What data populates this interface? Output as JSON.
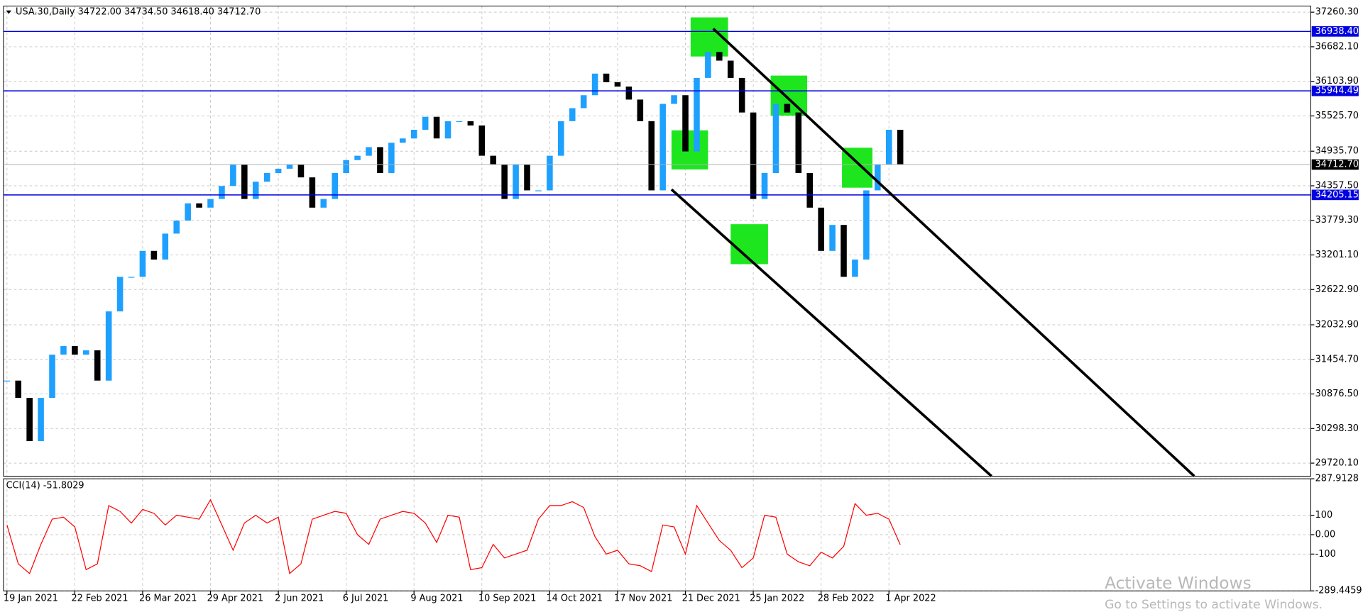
{
  "chart_data": [
    {
      "type": "candlestick",
      "title": "USA.30,Daily  34722.00 34734.50 34618.40 34712.70",
      "categories": [
        "19 Jan 2021",
        null,
        null,
        null,
        null,
        null,
        "22 Feb 2021",
        null,
        null,
        null,
        null,
        null,
        "26 Mar 2021",
        null,
        null,
        null,
        null,
        null,
        "29 Apr 2021",
        null,
        null,
        null,
        null,
        null,
        "2 Jun 2021",
        null,
        null,
        null,
        null,
        null,
        "6 Jul 2021",
        null,
        null,
        null,
        null,
        null,
        "9 Aug 2021",
        null,
        null,
        null,
        null,
        null,
        "10 Sep 2021",
        null,
        null,
        null,
        null,
        null,
        "14 Oct 2021",
        null,
        null,
        null,
        null,
        null,
        "17 Nov 2021",
        null,
        null,
        null,
        null,
        null,
        "21 Dec 2021",
        null,
        null,
        null,
        null,
        null,
        "25 Jan 2022",
        null,
        null,
        null,
        null,
        null,
        "28 Feb 2022",
        null,
        null,
        null,
        null,
        null,
        "1 Apr 2022",
        null
      ],
      "values": [
        31100,
        30811,
        30088,
        30811,
        31534,
        31678,
        31534,
        31606,
        31100,
        32257,
        32835,
        32835,
        33269,
        33124,
        33558,
        33775,
        34064,
        33992,
        34137,
        34354,
        34715,
        34137,
        34426,
        34571,
        34643,
        34715,
        34498,
        33992,
        34137,
        34571,
        34787,
        34860,
        35004,
        34571,
        35077,
        35149,
        35294,
        35511,
        35149,
        35438,
        35438,
        35366,
        34860,
        34715,
        34137,
        34715,
        34281,
        34281,
        34860,
        35438,
        35655,
        35872,
        36233,
        36089,
        36016,
        35799,
        35438,
        34281,
        35727,
        35872,
        34932,
        36161,
        36595,
        36450,
        36161,
        35583,
        34137,
        34571,
        35727,
        35583,
        34571,
        33992,
        33269,
        33703,
        32835,
        33124,
        34281,
        34715,
        35294,
        34712.7
      ],
      "up_color": "#1ea0ff",
      "down_color": "#000000",
      "ylim": [
        29502,
        37362
      ],
      "yticks": [
        {
          "value": 37260.3,
          "label": "37260.30"
        },
        {
          "value": 36682.1,
          "label": "36682.10"
        },
        {
          "value": 36103.9,
          "label": "36103.90"
        },
        {
          "value": 35525.7,
          "label": "35525.70"
        },
        {
          "value": 34935.7,
          "label": "34935.70"
        },
        {
          "value": 34357.5,
          "label": "34357.50"
        },
        {
          "value": 33779.3,
          "label": "33779.30"
        },
        {
          "value": 33201.1,
          "label": "33201.10"
        },
        {
          "value": 32622.9,
          "label": "32622.90"
        },
        {
          "value": 32032.9,
          "label": "32032.90"
        },
        {
          "value": 31454.7,
          "label": "31454.70"
        },
        {
          "value": 30876.5,
          "label": "30876.50"
        },
        {
          "value": 30298.3,
          "label": "30298.30"
        },
        {
          "value": 29720.1,
          "label": "29720.10"
        }
      ],
      "levels": [
        {
          "value": 36938.4,
          "label": "36938.40"
        },
        {
          "value": 35944.49,
          "label": "35944.49"
        },
        {
          "value": 34205.15,
          "label": "34205.15"
        }
      ],
      "level_color": "#0000e0",
      "current": {
        "value": 34712.7,
        "label": "34712.70"
      },
      "grid": true
    },
    {
      "type": "line",
      "title": "CCI(14) -51.8029",
      "color": "#ff0000",
      "values": [
        50,
        -150,
        -200,
        -50,
        80,
        90,
        40,
        -180,
        -150,
        150,
        120,
        60,
        130,
        110,
        50,
        100,
        90,
        80,
        180,
        50,
        -80,
        60,
        100,
        60,
        90,
        -200,
        -150,
        80,
        100,
        120,
        110,
        0,
        -50,
        80,
        100,
        120,
        110,
        60,
        -40,
        100,
        90,
        -180,
        -170,
        -50,
        -120,
        -100,
        -80,
        80,
        150,
        150,
        170,
        140,
        -10,
        -100,
        -80,
        -150,
        -160,
        -190,
        50,
        40,
        -100,
        150,
        60,
        -30,
        -80,
        -170,
        -120,
        100,
        90,
        -100,
        -140,
        -160,
        -90,
        -120,
        -60,
        160,
        100,
        110,
        80,
        -51.8029
      ],
      "ylim": [
        -289.4459,
        287.9128
      ],
      "yticks": [
        287.9128,
        100,
        {
          "value": 0,
          "label": "0.00"
        },
        -100,
        -289.4459
      ],
      "grid": true
    }
  ],
  "watermark": {
    "title": "Activate Windows",
    "subtitle": "Go to Settings to activate Windows."
  }
}
